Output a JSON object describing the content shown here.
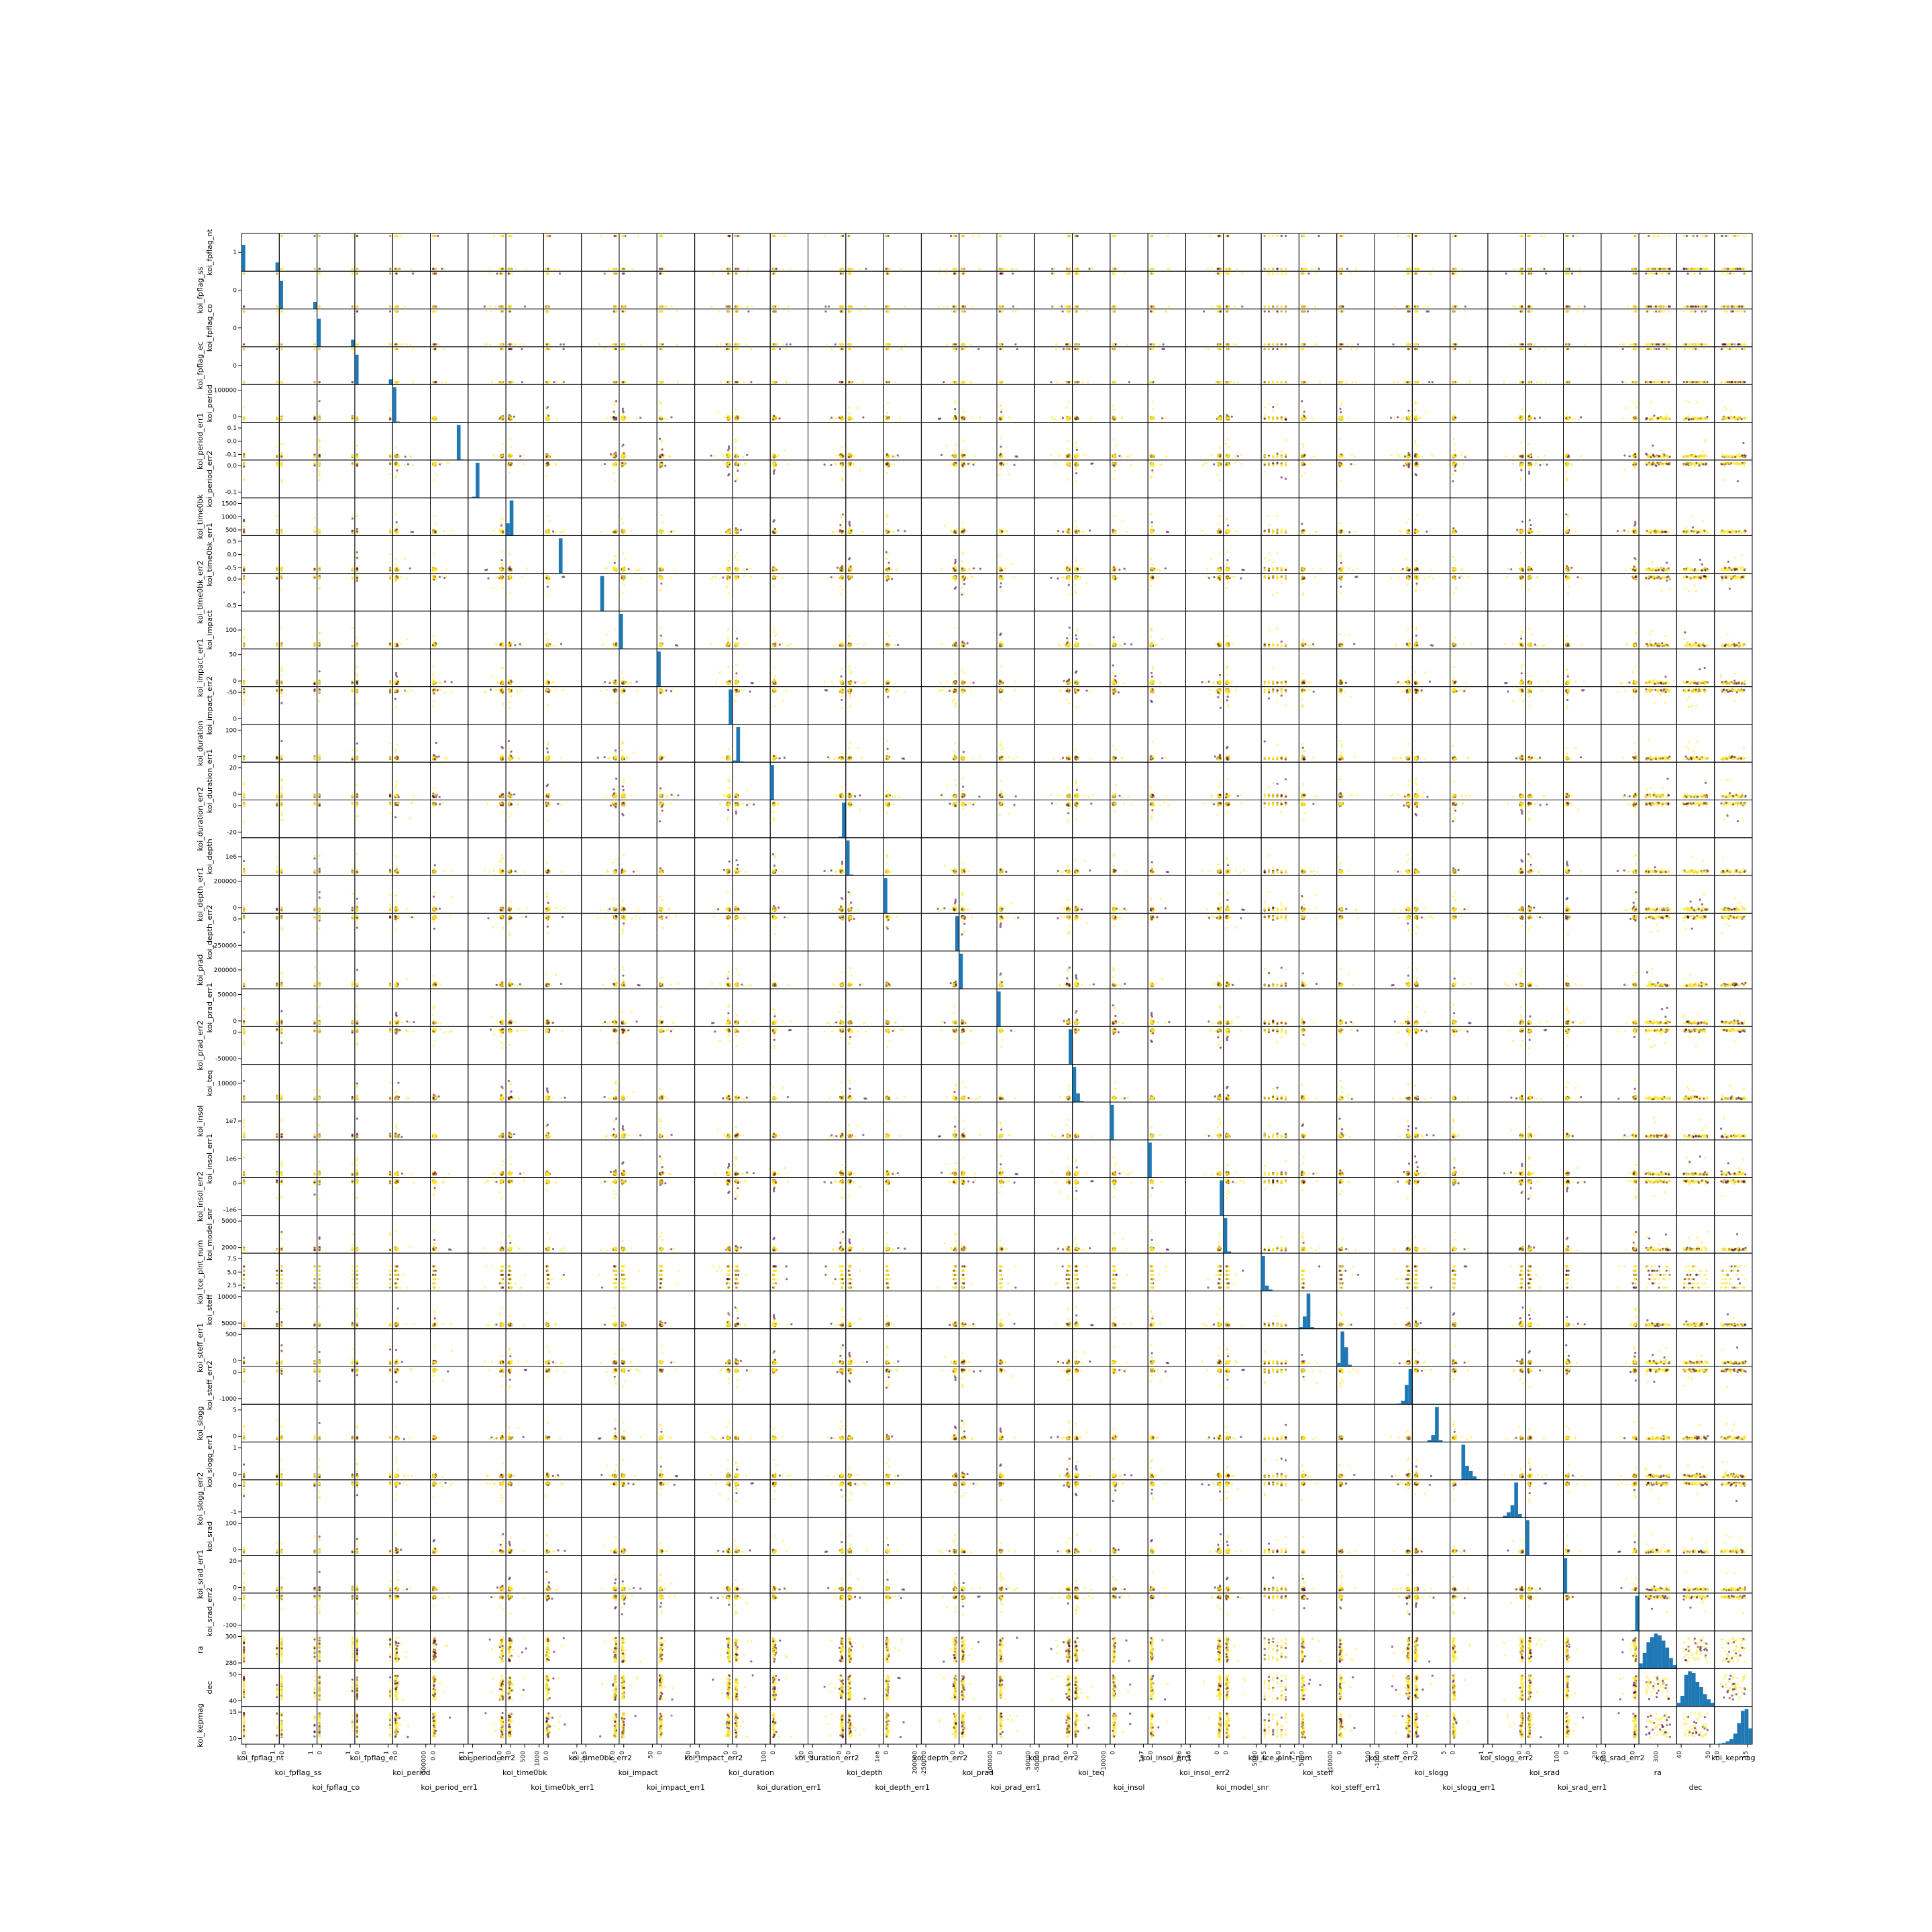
{
  "chart_data": {
    "type": "scatter-matrix",
    "variables": [
      "koi_fpflag_nt",
      "koi_fpflag_ss",
      "koi_fpflag_co",
      "koi_fpflag_ec",
      "koi_period",
      "koi_period_err1",
      "koi_period_err2",
      "koi_time0bk",
      "koi_time0bk_err1",
      "koi_time0bk_err2",
      "koi_impact",
      "koi_impact_err1",
      "koi_impact_err2",
      "koi_duration",
      "koi_duration_err1",
      "koi_duration_err2",
      "koi_depth",
      "koi_depth_err1",
      "koi_depth_err2",
      "koi_prad",
      "koi_prad_err1",
      "koi_prad_err2",
      "koi_teq",
      "koi_insol",
      "koi_insol_err1",
      "koi_insol_err2",
      "koi_model_snr",
      "koi_tce_plnt_num",
      "koi_steff",
      "koi_steff_err1",
      "koi_steff_err2",
      "koi_slogg",
      "koi_slogg_err1",
      "koi_slogg_err2",
      "koi_srad",
      "koi_srad_err1",
      "koi_srad_err2",
      "ra",
      "dec",
      "koi_kepmag"
    ],
    "diagonal": "hist",
    "colors": {
      "hist": "#1f77b4",
      "point_a": "#fde725",
      "point_b": "#440154",
      "frame": "#000000"
    },
    "xticks": [
      [
        "0",
        "1"
      ],
      [
        "0",
        "1"
      ],
      [
        "0",
        "1"
      ],
      [
        "0",
        "1"
      ],
      [
        "0",
        "500000"
      ],
      [
        "0.0",
        "0.1"
      ],
      [
        "-0.1",
        "0.0"
      ],
      [
        "0",
        "500",
        "1000"
      ],
      [
        "0.0",
        "0.5"
      ],
      [
        "-0.5",
        "0.0"
      ],
      [
        "0",
        "50"
      ],
      [
        "0",
        "50"
      ],
      [
        "-50",
        "0"
      ],
      [
        "0",
        "100"
      ],
      [
        "0",
        "20"
      ],
      [
        "-20",
        "0"
      ],
      [
        "0",
        "1e6"
      ],
      [
        "0",
        "200000"
      ],
      [
        "-250000",
        "0"
      ],
      [
        "0",
        "100000"
      ],
      [
        "0",
        "50000"
      ],
      [
        "-50000",
        "0"
      ],
      [
        "0",
        "10000"
      ],
      [
        "0",
        "1e7"
      ],
      [
        "0",
        "1e6"
      ],
      [
        "-1e6",
        "0"
      ],
      [
        "0",
        "5000"
      ],
      [
        "2.5",
        "5.0",
        "7.5"
      ],
      [
        "5000",
        "10000"
      ],
      [
        "0",
        "500"
      ],
      [
        "-1000",
        "0"
      ],
      [
        "0",
        "5"
      ],
      [
        "0",
        "1"
      ],
      [
        "-1",
        "0"
      ],
      [
        "0",
        "100"
      ],
      [
        "0",
        "20"
      ],
      [
        "-100",
        "0"
      ],
      [
        "300"
      ],
      [
        "40",
        "50"
      ],
      [
        "10",
        "15"
      ]
    ],
    "yticks": [
      [
        "1"
      ],
      [
        "0"
      ],
      [
        "0"
      ],
      [
        "0"
      ],
      [
        "0",
        "100000"
      ],
      [
        "-0.1",
        "0.0",
        "0.1"
      ],
      [
        "-0.1",
        "0.0"
      ],
      [
        "500",
        "1000",
        "1500"
      ],
      [
        "-0.5",
        "0.0",
        "0.5"
      ],
      [
        "-0.5",
        "0.0"
      ],
      [
        "100"
      ],
      [
        "0",
        "50"
      ],
      [
        "0",
        "-50"
      ],
      [
        "0",
        "100"
      ],
      [
        "0",
        "20"
      ],
      [
        "-20",
        "0"
      ],
      [
        "1e6"
      ],
      [
        "0",
        "200000"
      ],
      [
        "-250000",
        "0"
      ],
      [
        "200000"
      ],
      [
        "0",
        "50000"
      ],
      [
        "-50000",
        "0"
      ],
      [
        "10000"
      ],
      [
        "1e7"
      ],
      [
        "1e6"
      ],
      [
        "-1e6",
        "0"
      ],
      [
        "2000",
        "5000"
      ],
      [
        "2.5",
        "5.0",
        "7.5"
      ],
      [
        "5000",
        "10000"
      ],
      [
        "0",
        "500"
      ],
      [
        "-1000",
        "0"
      ],
      [
        "0",
        "5"
      ],
      [
        "0",
        "1"
      ],
      [
        "-1",
        "0"
      ],
      [
        "0",
        "100"
      ],
      [
        "0",
        "20"
      ],
      [
        "-100",
        "0"
      ],
      [
        "280",
        "300"
      ],
      [
        "40",
        "50"
      ],
      [
        "10",
        "15"
      ]
    ],
    "hist_values": [
      [
        0.75,
        0,
        0,
        0,
        0,
        0,
        0,
        0,
        0,
        0.25
      ],
      [
        0.8,
        0,
        0,
        0,
        0,
        0,
        0,
        0,
        0,
        0.2
      ],
      [
        0.8,
        0,
        0,
        0,
        0,
        0,
        0,
        0,
        0,
        0.2
      ],
      [
        0.85,
        0,
        0,
        0,
        0,
        0,
        0,
        0,
        0,
        0.15
      ],
      [
        1,
        0.02,
        0,
        0,
        0,
        0,
        0,
        0,
        0,
        0
      ],
      [
        0,
        0,
        0,
        0,
        0,
        0,
        0,
        1,
        0.02,
        0
      ],
      [
        0,
        0.03,
        1,
        0,
        0,
        0,
        0,
        0,
        0,
        0
      ],
      [
        0.35,
        1,
        0,
        0,
        0,
        0,
        0,
        0,
        0,
        0
      ],
      [
        0,
        0,
        0,
        0,
        1,
        0,
        0,
        0,
        0,
        0
      ],
      [
        0,
        0,
        0,
        0,
        0,
        1,
        0,
        0,
        0,
        0
      ],
      [
        1,
        0.01,
        0,
        0,
        0,
        0,
        0,
        0,
        0,
        0
      ],
      [
        1,
        0,
        0,
        0,
        0,
        0,
        0,
        0,
        0,
        0
      ],
      [
        0,
        0,
        0,
        0,
        0,
        0,
        0,
        0,
        0,
        1
      ],
      [
        0.05,
        1,
        0.02,
        0,
        0,
        0,
        0,
        0,
        0,
        0
      ],
      [
        1,
        0.01,
        0,
        0,
        0,
        0,
        0,
        0,
        0,
        0
      ],
      [
        0,
        0,
        0,
        0,
        0,
        0,
        0,
        0,
        0.03,
        1
      ],
      [
        1,
        0.03,
        0,
        0,
        0,
        0,
        0,
        0,
        0,
        0
      ],
      [
        1,
        0,
        0,
        0,
        0,
        0,
        0,
        0,
        0,
        0
      ],
      [
        0,
        0,
        0,
        0,
        0,
        0,
        0,
        0,
        0,
        1
      ],
      [
        1,
        0,
        0,
        0,
        0,
        0,
        0,
        0,
        0,
        0
      ],
      [
        1,
        0,
        0,
        0,
        0,
        0,
        0,
        0,
        0,
        0
      ],
      [
        0,
        0,
        0,
        0,
        0,
        0,
        0,
        0,
        0,
        1
      ],
      [
        1,
        0.25,
        0.03,
        0,
        0,
        0,
        0,
        0,
        0,
        0
      ],
      [
        1,
        0,
        0,
        0,
        0,
        0,
        0,
        0,
        0,
        0
      ],
      [
        1,
        0,
        0,
        0,
        0,
        0,
        0,
        0,
        0,
        0
      ],
      [
        0,
        0,
        0,
        0,
        0,
        0,
        0,
        0,
        0,
        1
      ],
      [
        1,
        0.05,
        0,
        0,
        0,
        0,
        0,
        0,
        0,
        0
      ],
      [
        1,
        0.15,
        0.04,
        0.01,
        0,
        0,
        0,
        0,
        0,
        0
      ],
      [
        0.05,
        0.35,
        1,
        0.05,
        0,
        0,
        0,
        0,
        0,
        0
      ],
      [
        0.1,
        1,
        0.55,
        0.05,
        0,
        0,
        0,
        0,
        0,
        0
      ],
      [
        0,
        0,
        0,
        0,
        0,
        0,
        0.02,
        0.1,
        0.55,
        1
      ],
      [
        0,
        0,
        0,
        0,
        0.05,
        0.2,
        1,
        0.05,
        0,
        0
      ],
      [
        0,
        0,
        0,
        1,
        0.4,
        0.25,
        0.1,
        0.02,
        0,
        0
      ],
      [
        0,
        0,
        0,
        0,
        0.05,
        0.15,
        0.35,
        1,
        0.1,
        0
      ],
      [
        1,
        0.01,
        0,
        0,
        0,
        0,
        0,
        0,
        0,
        0
      ],
      [
        1,
        0.01,
        0,
        0,
        0,
        0,
        0,
        0,
        0,
        0
      ],
      [
        0,
        0,
        0,
        0,
        0,
        0,
        0,
        0,
        0.02,
        1
      ],
      [
        0.15,
        0.45,
        0.75,
        0.9,
        1,
        0.95,
        0.8,
        0.6,
        0.3,
        0.1
      ],
      [
        0.1,
        0.3,
        0.9,
        1,
        0.95,
        0.7,
        0.55,
        0.35,
        0.2,
        0.1
      ],
      [
        0.01,
        0.02,
        0.04,
        0.08,
        0.15,
        0.3,
        0.6,
        0.95,
        1,
        0.45
      ]
    ]
  }
}
